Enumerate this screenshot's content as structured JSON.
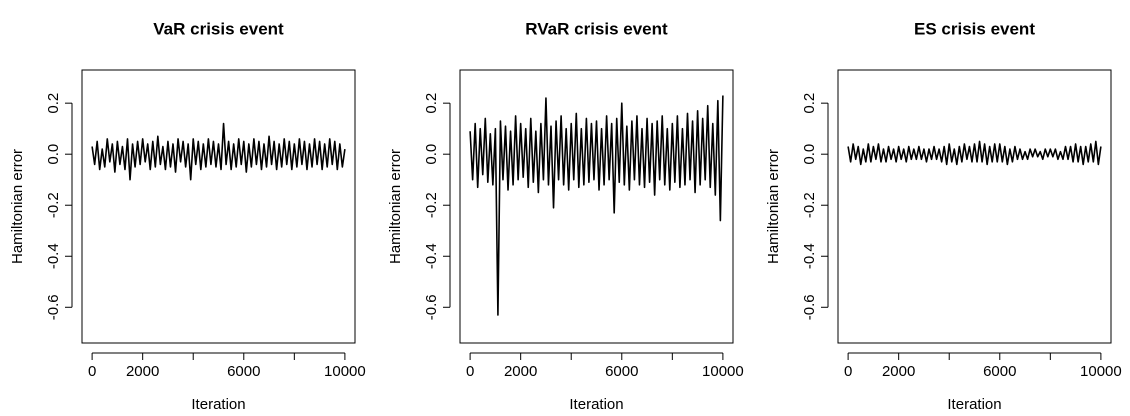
{
  "chart_data": [
    {
      "type": "line",
      "title": "VaR crisis event",
      "xlabel": "Iteration",
      "ylabel": "Hamiltonian error",
      "color": "#000000",
      "xlim": [
        -400,
        10400
      ],
      "ylim": [
        -0.74,
        0.33
      ],
      "xticks": [
        0,
        2000,
        {
          "value": 4000,
          "label": null
        },
        6000,
        {
          "value": 8000,
          "label": null
        },
        10000
      ],
      "yticks": [
        -0.6,
        -0.4,
        -0.2,
        {
          "value": 0,
          "label": "0.0"
        },
        0.2
      ],
      "x": [
        0,
        100,
        200,
        300,
        400,
        500,
        600,
        700,
        800,
        900,
        1000,
        1100,
        1200,
        1300,
        1400,
        1500,
        1600,
        1700,
        1800,
        1900,
        2000,
        2100,
        2200,
        2300,
        2400,
        2500,
        2600,
        2700,
        2800,
        2900,
        3000,
        3100,
        3200,
        3300,
        3400,
        3500,
        3600,
        3700,
        3800,
        3900,
        4000,
        4100,
        4200,
        4300,
        4400,
        4500,
        4600,
        4700,
        4800,
        4900,
        5000,
        5100,
        5200,
        5300,
        5400,
        5500,
        5600,
        5700,
        5800,
        5900,
        6000,
        6100,
        6200,
        6300,
        6400,
        6500,
        6600,
        6700,
        6800,
        6900,
        7000,
        7100,
        7200,
        7300,
        7400,
        7500,
        7600,
        7700,
        7800,
        7900,
        8000,
        8100,
        8200,
        8300,
        8400,
        8500,
        8600,
        8700,
        8800,
        8900,
        9000,
        9100,
        9200,
        9300,
        9400,
        9500,
        9600,
        9700,
        9800,
        9900,
        10000
      ],
      "values": [
        0.03,
        -0.04,
        0.05,
        -0.06,
        0.02,
        -0.05,
        0.06,
        -0.03,
        0.04,
        -0.07,
        0.05,
        -0.04,
        0.03,
        -0.06,
        0.06,
        -0.1,
        0.04,
        -0.05,
        0.05,
        -0.04,
        0.06,
        -0.03,
        0.04,
        -0.06,
        0.05,
        -0.05,
        0.07,
        -0.04,
        0.03,
        -0.06,
        0.05,
        -0.05,
        0.04,
        -0.07,
        0.06,
        -0.03,
        0.05,
        -0.05,
        0.04,
        -0.1,
        0.06,
        -0.04,
        0.05,
        -0.06,
        0.04,
        -0.05,
        0.06,
        -0.04,
        0.05,
        -0.05,
        0.04,
        -0.06,
        0.12,
        -0.04,
        0.05,
        -0.06,
        0.04,
        -0.05,
        0.06,
        -0.04,
        0.05,
        -0.07,
        0.04,
        -0.05,
        0.06,
        -0.04,
        0.05,
        -0.06,
        0.04,
        -0.05,
        0.07,
        -0.04,
        0.05,
        -0.06,
        0.04,
        -0.05,
        0.06,
        -0.04,
        0.05,
        -0.06,
        0.04,
        -0.05,
        0.06,
        -0.04,
        0.05,
        -0.06,
        0.04,
        -0.05,
        0.06,
        -0.04,
        0.05,
        -0.06,
        0.04,
        -0.05,
        0.06,
        -0.04,
        0.05,
        -0.06,
        0.04,
        -0.05,
        0.02
      ]
    },
    {
      "type": "line",
      "title": "RVaR crisis event",
      "xlabel": "Iteration",
      "ylabel": "Hamiltonian error",
      "color": "#000000",
      "xlim": [
        -400,
        10400
      ],
      "ylim": [
        -0.74,
        0.33
      ],
      "xticks": [
        0,
        2000,
        {
          "value": 4000,
          "label": null
        },
        6000,
        {
          "value": 8000,
          "label": null
        },
        10000
      ],
      "yticks": [
        -0.6,
        -0.4,
        -0.2,
        {
          "value": 0,
          "label": "0.0"
        },
        0.2
      ],
      "x": [
        0,
        100,
        200,
        300,
        400,
        500,
        600,
        700,
        800,
        900,
        1000,
        1100,
        1200,
        1300,
        1400,
        1500,
        1600,
        1700,
        1800,
        1900,
        2000,
        2100,
        2200,
        2300,
        2400,
        2500,
        2600,
        2700,
        2800,
        2900,
        3000,
        3100,
        3200,
        3300,
        3400,
        3500,
        3600,
        3700,
        3800,
        3900,
        4000,
        4100,
        4200,
        4300,
        4400,
        4500,
        4600,
        4700,
        4800,
        4900,
        5000,
        5100,
        5200,
        5300,
        5400,
        5500,
        5600,
        5700,
        5800,
        5900,
        6000,
        6100,
        6200,
        6300,
        6400,
        6500,
        6600,
        6700,
        6800,
        6900,
        7000,
        7100,
        7200,
        7300,
        7400,
        7500,
        7600,
        7700,
        7800,
        7900,
        8000,
        8100,
        8200,
        8300,
        8400,
        8500,
        8600,
        8700,
        8800,
        8900,
        9000,
        9100,
        9200,
        9300,
        9400,
        9500,
        9600,
        9700,
        9800,
        9900,
        10000
      ],
      "values": [
        0.09,
        -0.1,
        0.12,
        -0.13,
        0.1,
        -0.08,
        0.14,
        -0.11,
        0.08,
        -0.12,
        0.1,
        -0.63,
        0.13,
        -0.1,
        0.11,
        -0.14,
        0.09,
        -0.12,
        0.15,
        -0.1,
        0.12,
        -0.09,
        0.1,
        -0.13,
        0.14,
        -0.11,
        0.09,
        -0.15,
        0.12,
        -0.1,
        0.22,
        -0.12,
        0.11,
        -0.21,
        0.13,
        -0.1,
        0.15,
        -0.12,
        0.1,
        -0.14,
        0.12,
        -0.1,
        0.16,
        -0.13,
        0.1,
        -0.12,
        0.14,
        -0.11,
        0.12,
        -0.1,
        0.13,
        -0.14,
        0.1,
        -0.12,
        0.15,
        -0.1,
        0.12,
        -0.23,
        0.14,
        -0.11,
        0.2,
        -0.12,
        0.11,
        -0.14,
        0.13,
        -0.1,
        0.15,
        -0.12,
        0.1,
        -0.13,
        0.14,
        -0.11,
        0.12,
        -0.16,
        0.13,
        -0.1,
        0.15,
        -0.12,
        0.1,
        -0.14,
        0.12,
        -0.11,
        0.15,
        -0.13,
        0.1,
        -0.12,
        0.16,
        -0.1,
        0.13,
        -0.15,
        0.17,
        -0.12,
        0.14,
        -0.1,
        0.19,
        -0.13,
        0.12,
        -0.16,
        0.21,
        -0.26,
        0.23
      ]
    },
    {
      "type": "line",
      "title": "ES crisis event",
      "xlabel": "Iteration",
      "ylabel": "Hamiltonian error",
      "color": "#000000",
      "xlim": [
        -400,
        10400
      ],
      "ylim": [
        -0.74,
        0.33
      ],
      "xticks": [
        0,
        2000,
        {
          "value": 4000,
          "label": null
        },
        6000,
        {
          "value": 8000,
          "label": null
        },
        10000
      ],
      "yticks": [
        -0.6,
        -0.4,
        -0.2,
        {
          "value": 0,
          "label": "0.0"
        },
        0.2
      ],
      "x": [
        0,
        100,
        200,
        300,
        400,
        500,
        600,
        700,
        800,
        900,
        1000,
        1100,
        1200,
        1300,
        1400,
        1500,
        1600,
        1700,
        1800,
        1900,
        2000,
        2100,
        2200,
        2300,
        2400,
        2500,
        2600,
        2700,
        2800,
        2900,
        3000,
        3100,
        3200,
        3300,
        3400,
        3500,
        3600,
        3700,
        3800,
        3900,
        4000,
        4100,
        4200,
        4300,
        4400,
        4500,
        4600,
        4700,
        4800,
        4900,
        5000,
        5100,
        5200,
        5300,
        5400,
        5500,
        5600,
        5700,
        5800,
        5900,
        6000,
        6100,
        6200,
        6300,
        6400,
        6500,
        6600,
        6700,
        6800,
        6900,
        7000,
        7100,
        7200,
        7300,
        7400,
        7500,
        7600,
        7700,
        7800,
        7900,
        8000,
        8100,
        8200,
        8300,
        8400,
        8500,
        8600,
        8700,
        8800,
        8900,
        9000,
        9100,
        9200,
        9300,
        9400,
        9500,
        9600,
        9700,
        9800,
        9900,
        10000
      ],
      "values": [
        0.03,
        -0.03,
        0.04,
        -0.02,
        0.03,
        -0.04,
        0.02,
        -0.03,
        0.04,
        -0.03,
        0.03,
        -0.02,
        0.04,
        -0.03,
        0.02,
        -0.03,
        0.03,
        -0.02,
        0.02,
        -0.03,
        0.03,
        -0.02,
        0.02,
        -0.03,
        0.03,
        -0.02,
        0.02,
        -0.02,
        0.03,
        -0.02,
        0.02,
        -0.03,
        0.02,
        -0.02,
        0.03,
        -0.02,
        0.02,
        -0.03,
        0.03,
        -0.04,
        0.04,
        -0.03,
        0.02,
        -0.04,
        0.03,
        -0.03,
        0.04,
        -0.02,
        0.03,
        -0.03,
        0.04,
        -0.03,
        0.05,
        -0.03,
        0.04,
        -0.04,
        0.03,
        -0.03,
        0.04,
        -0.03,
        0.04,
        -0.03,
        0.03,
        -0.04,
        0.02,
        -0.03,
        0.03,
        -0.02,
        0.02,
        -0.02,
        0.01,
        -0.02,
        0.02,
        -0.01,
        0.02,
        -0.01,
        0.01,
        -0.02,
        0.02,
        -0.01,
        0.02,
        -0.01,
        0.02,
        -0.02,
        0.01,
        -0.02,
        0.03,
        -0.02,
        0.03,
        -0.03,
        0.04,
        -0.03,
        0.03,
        -0.04,
        0.03,
        -0.03,
        0.04,
        -0.03,
        0.05,
        -0.04,
        0.03
      ]
    }
  ]
}
